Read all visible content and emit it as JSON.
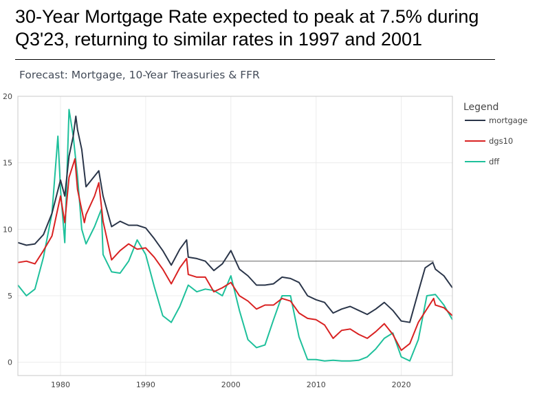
{
  "header": {
    "title": "30-Year Mortgage Rate expected to peak at 7.5% during Q3'23, returning to similar rates in 1997 and 2001"
  },
  "chart_data": {
    "type": "line",
    "title": "Forecast: Mortgage, 10-Year Treasuries & FFR",
    "xlabel": "",
    "ylabel": "",
    "xlim": [
      1975,
      2026
    ],
    "ylim": [
      -1,
      20
    ],
    "x_ticks": [
      1980,
      1990,
      2000,
      2010,
      2020
    ],
    "y_ticks": [
      0,
      5,
      10,
      15,
      20
    ],
    "grid": true,
    "legend": {
      "title": "Legend",
      "placement": "right"
    },
    "reference_line": {
      "y": 7.6,
      "x_start": 1997.5,
      "x_end": 2023.8,
      "color": "#333333"
    },
    "series": [
      {
        "name": "mortgage",
        "color": "#2a3549",
        "points": [
          [
            1975,
            9.0
          ],
          [
            1976,
            8.8
          ],
          [
            1977,
            8.9
          ],
          [
            1978,
            9.6
          ],
          [
            1979,
            11.2
          ],
          [
            1980,
            13.7
          ],
          [
            1980.5,
            12.5
          ],
          [
            1981,
            15.5
          ],
          [
            1981.5,
            17.0
          ],
          [
            1981.8,
            18.5
          ],
          [
            1982,
            17.5
          ],
          [
            1982.5,
            16.0
          ],
          [
            1983,
            13.2
          ],
          [
            1984,
            14.0
          ],
          [
            1984.5,
            14.4
          ],
          [
            1985,
            12.5
          ],
          [
            1986,
            10.2
          ],
          [
            1987,
            10.6
          ],
          [
            1988,
            10.3
          ],
          [
            1989,
            10.3
          ],
          [
            1990,
            10.1
          ],
          [
            1991,
            9.3
          ],
          [
            1992,
            8.4
          ],
          [
            1993,
            7.3
          ],
          [
            1994,
            8.5
          ],
          [
            1994.8,
            9.2
          ],
          [
            1995,
            7.9
          ],
          [
            1996,
            7.8
          ],
          [
            1997,
            7.6
          ],
          [
            1998,
            6.9
          ],
          [
            1999,
            7.4
          ],
          [
            2000,
            8.4
          ],
          [
            2001,
            7.0
          ],
          [
            2002,
            6.5
          ],
          [
            2003,
            5.8
          ],
          [
            2004,
            5.8
          ],
          [
            2005,
            5.9
          ],
          [
            2006,
            6.4
          ],
          [
            2007,
            6.3
          ],
          [
            2008,
            6.0
          ],
          [
            2009,
            5.0
          ],
          [
            2010,
            4.7
          ],
          [
            2011,
            4.5
          ],
          [
            2012,
            3.7
          ],
          [
            2013,
            4.0
          ],
          [
            2014,
            4.2
          ],
          [
            2015,
            3.9
          ],
          [
            2016,
            3.6
          ],
          [
            2017,
            4.0
          ],
          [
            2018,
            4.5
          ],
          [
            2019,
            3.9
          ],
          [
            2020,
            3.1
          ],
          [
            2021,
            3.0
          ],
          [
            2022,
            5.3
          ],
          [
            2022.8,
            7.1
          ],
          [
            2023.7,
            7.5
          ],
          [
            2024,
            7.0
          ],
          [
            2025,
            6.5
          ],
          [
            2026,
            5.6
          ]
        ]
      },
      {
        "name": "dgs10",
        "color": "#d92121",
        "points": [
          [
            1975,
            7.5
          ],
          [
            1976,
            7.6
          ],
          [
            1977,
            7.4
          ],
          [
            1978,
            8.4
          ],
          [
            1979,
            9.5
          ],
          [
            1980,
            12.5
          ],
          [
            1980.5,
            10.5
          ],
          [
            1981,
            13.9
          ],
          [
            1981.7,
            15.3
          ],
          [
            1982,
            13.0
          ],
          [
            1982.8,
            10.5
          ],
          [
            1983,
            11.1
          ],
          [
            1984,
            12.5
          ],
          [
            1984.5,
            13.5
          ],
          [
            1985,
            10.6
          ],
          [
            1986,
            7.7
          ],
          [
            1987,
            8.4
          ],
          [
            1988,
            8.9
          ],
          [
            1989,
            8.5
          ],
          [
            1990,
            8.6
          ],
          [
            1991,
            7.9
          ],
          [
            1992,
            7.0
          ],
          [
            1993,
            5.9
          ],
          [
            1994,
            7.1
          ],
          [
            1994.8,
            7.8
          ],
          [
            1995,
            6.6
          ],
          [
            1996,
            6.4
          ],
          [
            1997,
            6.4
          ],
          [
            1998,
            5.3
          ],
          [
            1999,
            5.6
          ],
          [
            2000,
            6.0
          ],
          [
            2001,
            5.0
          ],
          [
            2002,
            4.6
          ],
          [
            2003,
            4.0
          ],
          [
            2004,
            4.3
          ],
          [
            2005,
            4.3
          ],
          [
            2006,
            4.8
          ],
          [
            2007,
            4.6
          ],
          [
            2008,
            3.7
          ],
          [
            2009,
            3.3
          ],
          [
            2010,
            3.2
          ],
          [
            2011,
            2.8
          ],
          [
            2012,
            1.8
          ],
          [
            2013,
            2.4
          ],
          [
            2014,
            2.5
          ],
          [
            2015,
            2.1
          ],
          [
            2016,
            1.8
          ],
          [
            2017,
            2.3
          ],
          [
            2018,
            2.9
          ],
          [
            2019,
            2.1
          ],
          [
            2020,
            0.9
          ],
          [
            2021,
            1.4
          ],
          [
            2022,
            3.0
          ],
          [
            2023,
            4.0
          ],
          [
            2023.8,
            4.8
          ],
          [
            2024,
            4.3
          ],
          [
            2025,
            4.1
          ],
          [
            2026,
            3.5
          ]
        ]
      },
      {
        "name": "dff",
        "color": "#1ec09b",
        "points": [
          [
            1975,
            5.8
          ],
          [
            1976,
            5.0
          ],
          [
            1977,
            5.5
          ],
          [
            1978,
            7.9
          ],
          [
            1979,
            11.2
          ],
          [
            1979.7,
            17.0
          ],
          [
            1980,
            13.0
          ],
          [
            1980.5,
            9.0
          ],
          [
            1981,
            19.0
          ],
          [
            1981.5,
            17.0
          ],
          [
            1982,
            14.0
          ],
          [
            1982.5,
            10.0
          ],
          [
            1983,
            8.9
          ],
          [
            1984,
            10.2
          ],
          [
            1984.8,
            11.5
          ],
          [
            1985,
            8.1
          ],
          [
            1986,
            6.8
          ],
          [
            1987,
            6.7
          ],
          [
            1988,
            7.6
          ],
          [
            1989,
            9.2
          ],
          [
            1990,
            8.1
          ],
          [
            1991,
            5.7
          ],
          [
            1992,
            3.5
          ],
          [
            1993,
            3.0
          ],
          [
            1994,
            4.2
          ],
          [
            1995,
            5.8
          ],
          [
            1996,
            5.3
          ],
          [
            1997,
            5.5
          ],
          [
            1998,
            5.4
          ],
          [
            1999,
            5.0
          ],
          [
            2000,
            6.5
          ],
          [
            2001,
            3.9
          ],
          [
            2002,
            1.7
          ],
          [
            2003,
            1.1
          ],
          [
            2004,
            1.3
          ],
          [
            2005,
            3.2
          ],
          [
            2006,
            5.0
          ],
          [
            2007,
            5.0
          ],
          [
            2008,
            1.9
          ],
          [
            2009,
            0.2
          ],
          [
            2010,
            0.2
          ],
          [
            2011,
            0.1
          ],
          [
            2012,
            0.15
          ],
          [
            2013,
            0.1
          ],
          [
            2014,
            0.1
          ],
          [
            2015,
            0.15
          ],
          [
            2016,
            0.4
          ],
          [
            2017,
            1.0
          ],
          [
            2018,
            1.8
          ],
          [
            2019,
            2.2
          ],
          [
            2020,
            0.4
          ],
          [
            2021,
            0.1
          ],
          [
            2022,
            1.7
          ],
          [
            2023,
            5.0
          ],
          [
            2024,
            5.1
          ],
          [
            2025,
            4.3
          ],
          [
            2026,
            3.2
          ]
        ]
      }
    ]
  }
}
